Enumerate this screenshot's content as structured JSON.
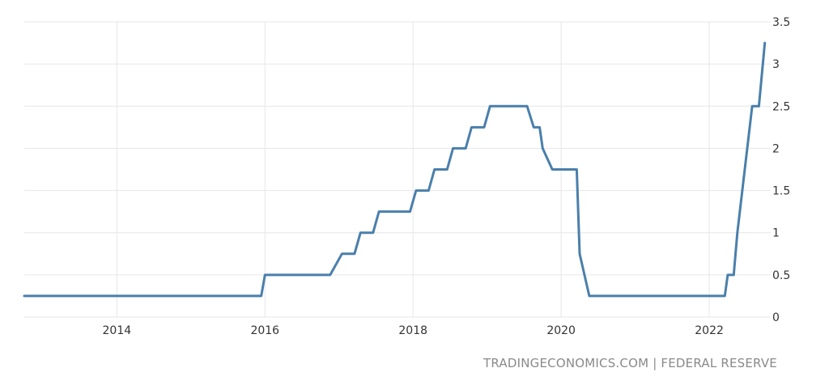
{
  "chart_data": {
    "type": "line",
    "title": "",
    "xlabel": "",
    "ylabel": "",
    "x_ticks": [
      "2014",
      "2016",
      "2018",
      "2020",
      "2022"
    ],
    "y_ticks": [
      "0",
      "0.5",
      "1",
      "1.5",
      "2",
      "2.5",
      "3",
      "3.5"
    ],
    "xlim": [
      2012.75,
      2022.83
    ],
    "ylim": [
      0,
      3.5
    ],
    "grid": true,
    "colors": {
      "line": "#4a7fab",
      "grid": "#e6e6e6",
      "text": "#333333",
      "source": "#8a8a8a"
    },
    "series": [
      {
        "points": [
          [
            2012.75,
            0.25
          ],
          [
            2015.95,
            0.25
          ],
          [
            2016.0,
            0.5
          ],
          [
            2016.88,
            0.5
          ],
          [
            2017.04,
            0.75
          ],
          [
            2017.21,
            0.75
          ],
          [
            2017.29,
            1.0
          ],
          [
            2017.46,
            1.0
          ],
          [
            2017.54,
            1.25
          ],
          [
            2017.96,
            1.25
          ],
          [
            2018.04,
            1.5
          ],
          [
            2018.21,
            1.5
          ],
          [
            2018.29,
            1.75
          ],
          [
            2018.46,
            1.75
          ],
          [
            2018.54,
            2.0
          ],
          [
            2018.71,
            2.0
          ],
          [
            2018.79,
            2.25
          ],
          [
            2018.96,
            2.25
          ],
          [
            2019.04,
            2.5
          ],
          [
            2019.54,
            2.5
          ],
          [
            2019.63,
            2.25
          ],
          [
            2019.71,
            2.25
          ],
          [
            2019.75,
            2.0
          ],
          [
            2019.88,
            1.75
          ],
          [
            2020.21,
            1.75
          ],
          [
            2020.25,
            0.75
          ],
          [
            2020.38,
            0.25
          ],
          [
            2022.21,
            0.25
          ],
          [
            2022.25,
            0.5
          ],
          [
            2022.33,
            0.5
          ],
          [
            2022.38,
            1.0
          ],
          [
            2022.58,
            2.5
          ],
          [
            2022.67,
            2.5
          ],
          [
            2022.75,
            3.25
          ]
        ]
      }
    ]
  },
  "source": "TRADINGECONOMICS.COM | FEDERAL RESERVE"
}
